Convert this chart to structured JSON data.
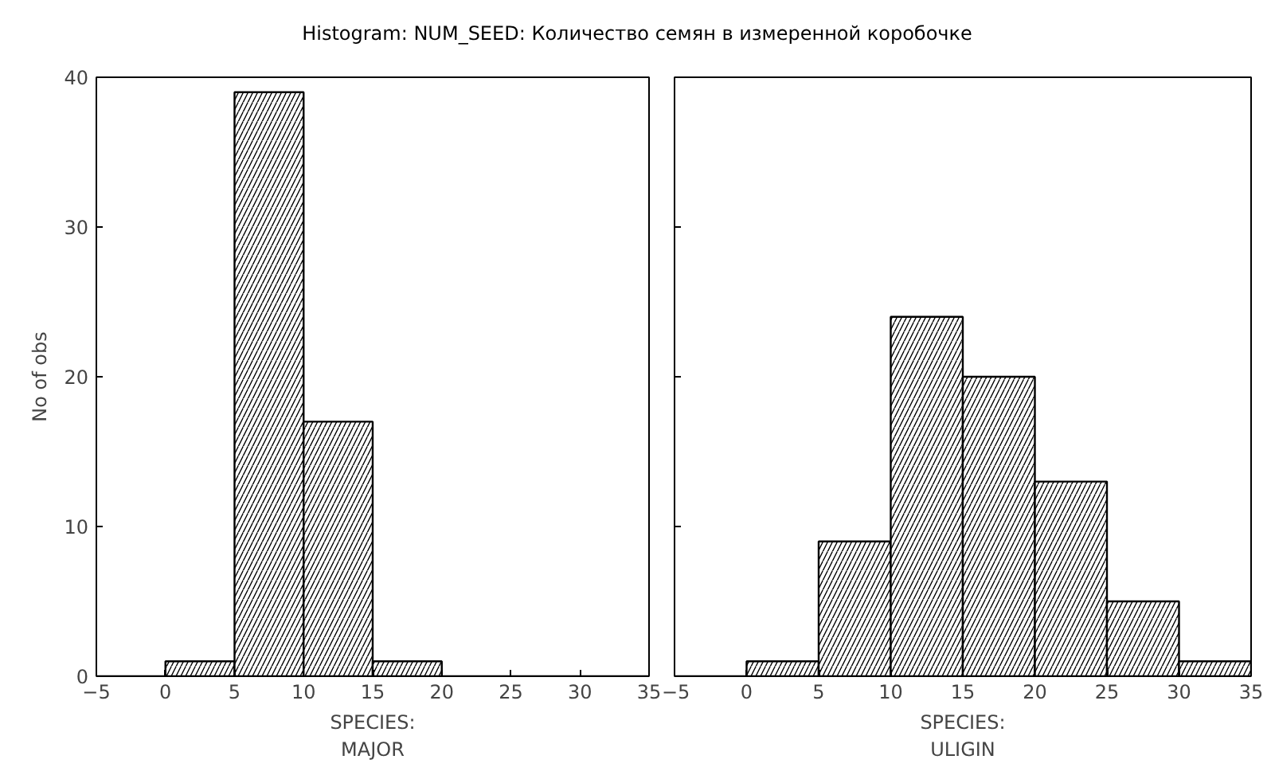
{
  "chart_data": [
    {
      "type": "histogram",
      "title": "Histogram: NUM_SEED: Количество семян в измеренной коробочке",
      "xlabel": "SPECIES:\nMAJOR",
      "ylabel": "No of obs",
      "bins": [
        -5,
        0,
        5,
        10,
        15,
        20,
        25,
        30,
        35
      ],
      "values": [
        0,
        1,
        39,
        17,
        1,
        0,
        0,
        0
      ],
      "color": "#000000",
      "xlim": [
        -5,
        35
      ],
      "xticks": [
        -5,
        0,
        5,
        10,
        15,
        20,
        25,
        30,
        35
      ],
      "ylim": [
        0,
        40
      ],
      "yticks": [
        0,
        10,
        20,
        30,
        40
      ],
      "grid": false
    },
    {
      "type": "histogram",
      "xlabel": "SPECIES:\nULIGIN",
      "bins": [
        -5,
        0,
        5,
        10,
        15,
        20,
        25,
        30,
        35
      ],
      "values": [
        0,
        1,
        9,
        24,
        20,
        13,
        5,
        1
      ],
      "color": "#000000",
      "xlim": [
        -5,
        35
      ],
      "xticks": [
        -5,
        0,
        5,
        10,
        15,
        20,
        25,
        30,
        35
      ],
      "ylim": [
        0,
        40
      ],
      "yticks": [
        0,
        10,
        20,
        30,
        40
      ],
      "grid": false,
      "tick_labels": "x"
    }
  ]
}
